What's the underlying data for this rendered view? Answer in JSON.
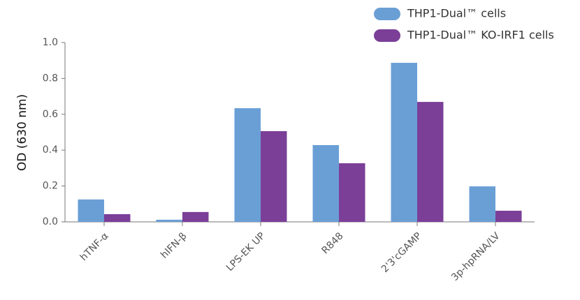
{
  "chart_data": {
    "type": "bar",
    "y_label": "OD (630 nm)",
    "categories": [
      "hTNF-α",
      "hIFN-β",
      "LPS-EK UP",
      "R848",
      "2'3'cGAMP",
      "3p-hpRNA/LV"
    ],
    "series": [
      {
        "name": "THP1-Dual™ cells",
        "color": "#6a9fd6",
        "values": [
          0.125,
          0.012,
          0.634,
          0.428,
          0.887,
          0.198
        ]
      },
      {
        "name": "THP1-Dual™ KO-IRF1 cells",
        "color": "#7b3f98",
        "values": [
          0.043,
          0.055,
          0.506,
          0.327,
          0.669,
          0.062
        ]
      }
    ],
    "ylim": [
      0,
      1.0
    ],
    "yticks": [
      {
        "value": 0,
        "label": "0.0"
      },
      {
        "value": 0.2,
        "label": "0.2"
      },
      {
        "value": 0.4,
        "label": "0.4"
      },
      {
        "value": 0.6,
        "label": "0.6"
      },
      {
        "value": 0.8,
        "label": "0.8"
      },
      {
        "value": 1.0,
        "label": "1.0"
      }
    ],
    "legend": "top-right"
  }
}
